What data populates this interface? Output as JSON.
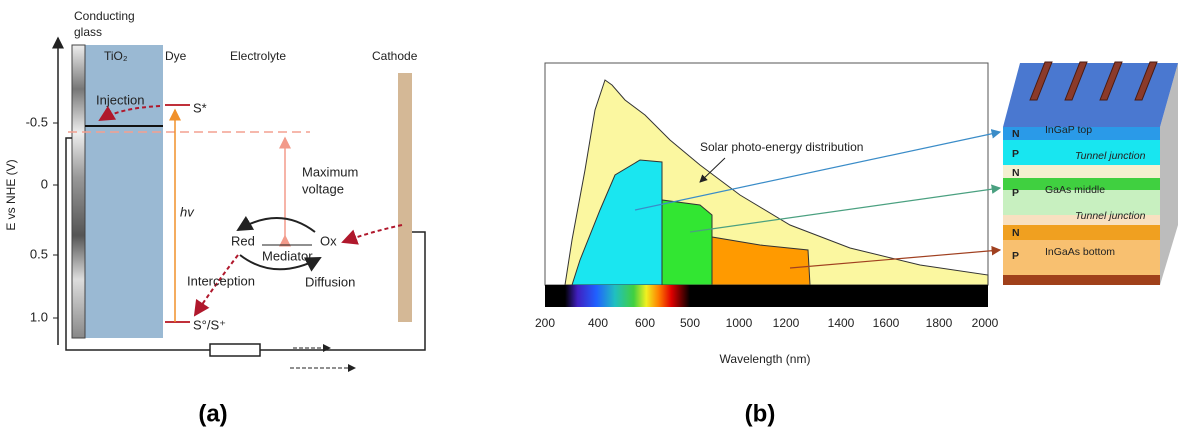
{
  "panel_a": {
    "top_labels": {
      "conducting": "Conducting",
      "glass": "glass",
      "tio2": "TiO₂",
      "dye": "Dye",
      "electrolyte": "Electrolyte",
      "cathode": "Cathode"
    },
    "y_axis_label": "E vs NHE (V)",
    "y_ticks": [
      "-0.5",
      "0",
      "0.5",
      "1.0"
    ],
    "injection": "Injection",
    "excited": "S*",
    "hv": "hv",
    "maximum": "Maximum",
    "voltage": "voltage",
    "red": "Red",
    "mediator": "Mediator",
    "ox": "Ox",
    "interception": "Interception",
    "diffusion": "Diffusion",
    "ground": "S°/S⁺",
    "caption": "(a)"
  },
  "panel_b": {
    "x_ticks": [
      "200",
      "400",
      "600",
      "500",
      "1000",
      "1200",
      "1400",
      "1600",
      "1800",
      "2000"
    ],
    "x_axis_label": "Wavelength (nm)",
    "annotation": "Solar photo-energy distribution",
    "layers": [
      "N",
      "InGaP top",
      "P",
      "Tunnel junction",
      "N",
      "GaAs middle",
      "P",
      "Tunnel junction",
      "N",
      "P",
      "InGaAs bottom"
    ],
    "caption": "(b)"
  }
}
